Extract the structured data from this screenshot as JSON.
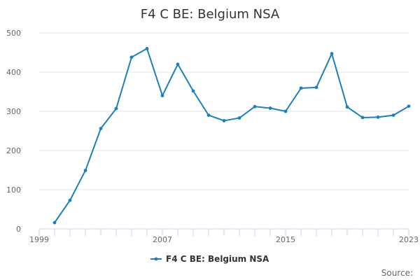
{
  "chart_data": {
    "type": "line",
    "title": "F4 C BE: Belgium NSA",
    "xlabel": "",
    "ylabel": "",
    "xlim": [
      1999,
      2023
    ],
    "ylim": [
      0,
      500
    ],
    "x_ticks": [
      1999,
      2007,
      2015,
      2023
    ],
    "y_ticks": [
      0,
      100,
      200,
      300,
      400,
      500
    ],
    "grid": true,
    "legend_position": "bottom-center",
    "series": [
      {
        "name": "F4 C BE: Belgium NSA",
        "color": "#1f7fb8",
        "x": [
          2000,
          2001,
          2002,
          2003,
          2004,
          2005,
          2006,
          2007,
          2008,
          2009,
          2010,
          2011,
          2012,
          2013,
          2014,
          2015,
          2016,
          2017,
          2018,
          2019,
          2020,
          2021,
          2022,
          2023
        ],
        "y": [
          16,
          73,
          149,
          256,
          307,
          438,
          460,
          340,
          420,
          352,
          290,
          276,
          283,
          312,
          308,
          300,
          359,
          361,
          447,
          311,
          284,
          285,
          290,
          313
        ]
      }
    ]
  },
  "source_label": "Source:"
}
